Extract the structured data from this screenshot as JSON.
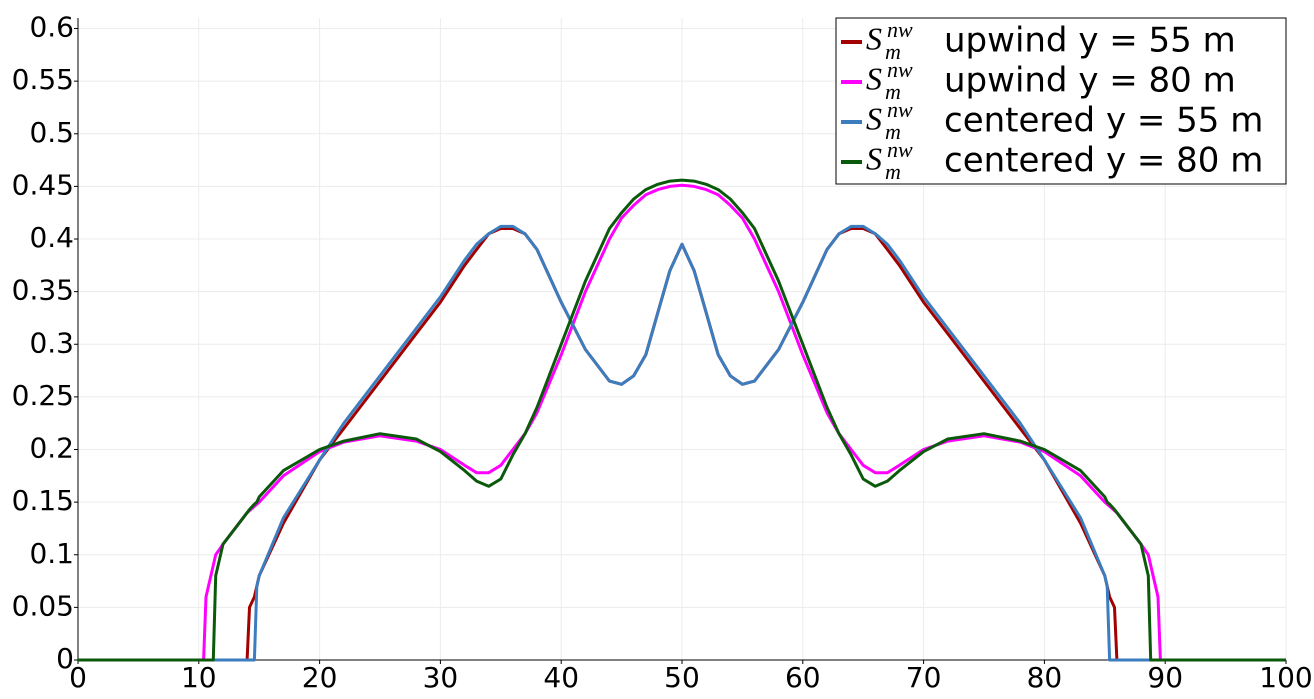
{
  "chart_data": {
    "type": "line",
    "legend_prefix": {
      "base": "S",
      "sub": "m",
      "sup": "nw"
    },
    "legend": "upper right",
    "grid": true,
    "x": [
      0,
      10.4,
      10.6,
      11.2,
      11.4,
      12,
      14,
      14.2,
      14.6,
      14.8,
      15,
      17,
      20,
      22,
      25,
      28,
      30,
      32,
      33,
      34,
      35,
      36,
      37,
      38,
      40,
      42,
      44,
      45,
      46,
      47,
      48,
      49,
      50,
      51,
      52,
      53,
      54,
      55,
      56,
      58,
      60,
      62,
      63,
      64,
      65,
      66,
      67,
      68,
      70,
      72,
      75,
      78,
      80,
      83,
      85,
      85.2,
      85.4,
      85.8,
      86,
      88,
      88.6,
      88.8,
      89.4,
      89.6,
      100
    ],
    "series": [
      {
        "name": "upwind y = 55 m",
        "color": "#a30000",
        "values": [
          0,
          0,
          0,
          0,
          0,
          0,
          0,
          0.05,
          0.06,
          0.07,
          0.08,
          0.13,
          0.19,
          0.22,
          0.265,
          0.31,
          0.34,
          0.375,
          0.39,
          0.405,
          0.41,
          0.41,
          0.405,
          0.39,
          0.34,
          0.295,
          0.265,
          0.262,
          0.27,
          0.29,
          0.33,
          0.37,
          0.395,
          0.37,
          0.33,
          0.29,
          0.27,
          0.262,
          0.265,
          0.295,
          0.34,
          0.39,
          0.405,
          0.41,
          0.41,
          0.405,
          0.39,
          0.375,
          0.34,
          0.31,
          0.265,
          0.22,
          0.19,
          0.13,
          0.08,
          0.07,
          0.06,
          0.05,
          0,
          0,
          0,
          0,
          0,
          0,
          0
        ]
      },
      {
        "name": "upwind y = 80 m",
        "color": "#ff00ff",
        "values": [
          0,
          0,
          0.06,
          0.09,
          0.1,
          0.11,
          0.14,
          0.142,
          0.146,
          0.148,
          0.15,
          0.175,
          0.198,
          0.207,
          0.213,
          0.208,
          0.2,
          0.185,
          0.178,
          0.178,
          0.185,
          0.2,
          0.215,
          0.235,
          0.29,
          0.35,
          0.4,
          0.42,
          0.432,
          0.442,
          0.447,
          0.45,
          0.451,
          0.45,
          0.447,
          0.442,
          0.432,
          0.42,
          0.4,
          0.35,
          0.29,
          0.235,
          0.215,
          0.2,
          0.185,
          0.178,
          0.178,
          0.185,
          0.2,
          0.208,
          0.213,
          0.207,
          0.198,
          0.175,
          0.15,
          0.148,
          0.146,
          0.142,
          0.14,
          0.11,
          0.1,
          0.09,
          0.06,
          0,
          0
        ]
      },
      {
        "name": "centered y = 55 m",
        "color": "#3b7dbf",
        "values": [
          0,
          0,
          0,
          0,
          0,
          0,
          0,
          0,
          0,
          0.07,
          0.08,
          0.135,
          0.19,
          0.225,
          0.27,
          0.315,
          0.345,
          0.38,
          0.395,
          0.405,
          0.412,
          0.412,
          0.405,
          0.39,
          0.34,
          0.295,
          0.265,
          0.262,
          0.27,
          0.29,
          0.33,
          0.37,
          0.395,
          0.37,
          0.33,
          0.29,
          0.27,
          0.262,
          0.265,
          0.295,
          0.34,
          0.39,
          0.405,
          0.412,
          0.412,
          0.405,
          0.395,
          0.38,
          0.345,
          0.315,
          0.27,
          0.225,
          0.19,
          0.135,
          0.08,
          0.07,
          0,
          0,
          0,
          0,
          0,
          0,
          0,
          0,
          0
        ]
      },
      {
        "name": "centered y = 80 m",
        "color": "#0b5a0b",
        "values": [
          0,
          0,
          0,
          0,
          0.08,
          0.11,
          0.14,
          0.143,
          0.148,
          0.15,
          0.155,
          0.18,
          0.2,
          0.208,
          0.215,
          0.21,
          0.198,
          0.18,
          0.17,
          0.165,
          0.172,
          0.195,
          0.215,
          0.24,
          0.3,
          0.36,
          0.41,
          0.425,
          0.438,
          0.447,
          0.452,
          0.455,
          0.456,
          0.455,
          0.452,
          0.447,
          0.438,
          0.425,
          0.41,
          0.36,
          0.3,
          0.24,
          0.215,
          0.195,
          0.172,
          0.165,
          0.17,
          0.18,
          0.198,
          0.21,
          0.215,
          0.208,
          0.2,
          0.18,
          0.155,
          0.15,
          0.148,
          0.143,
          0.14,
          0.11,
          0.08,
          0,
          0,
          0,
          0
        ]
      }
    ],
    "xlim": [
      0,
      100
    ],
    "xticks": [
      0,
      10,
      20,
      30,
      40,
      50,
      60,
      70,
      80,
      90,
      100
    ],
    "ylim": [
      0,
      0.61
    ],
    "yticks": [
      0,
      0.05,
      0.1,
      0.15,
      0.2,
      0.25,
      0.3,
      0.35,
      0.4,
      0.45,
      0.5,
      0.55,
      0.6
    ]
  }
}
